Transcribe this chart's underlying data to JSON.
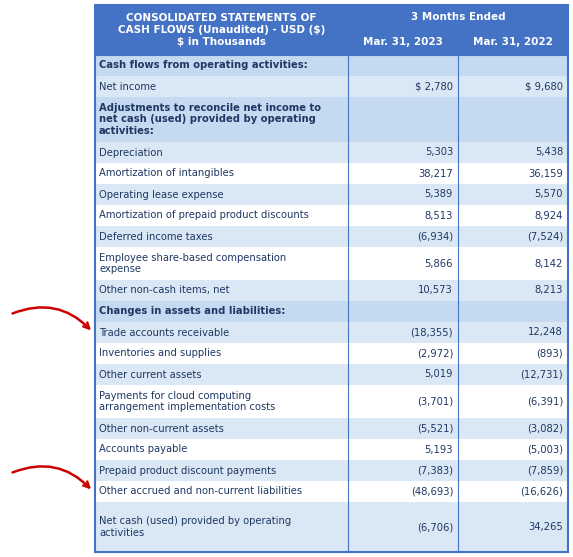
{
  "title_line1": "CONSOLIDATED STATEMENTS OF",
  "title_line2": "CASH FLOWS (Unaudited) - USD ($)",
  "title_line3": "$ in Thousands",
  "col1_header": "3 Months Ended",
  "col1_sub1": "Mar. 31, 2023",
  "col1_sub2": "Mar. 31, 2022",
  "rows": [
    {
      "label": "Cash flows from operating activities:",
      "val1": "",
      "val2": "",
      "bold": true,
      "header_row": true,
      "arrow": false,
      "multiline": false
    },
    {
      "label": "Net income",
      "val1": "$ 2,780",
      "val2": "$ 9,680",
      "bold": false,
      "header_row": false,
      "arrow": false,
      "multiline": false
    },
    {
      "label": "Adjustments to reconcile net income to\nnet cash (used) provided by operating\nactivities:",
      "val1": "",
      "val2": "",
      "bold": true,
      "header_row": true,
      "arrow": false,
      "multiline": true
    },
    {
      "label": "Depreciation",
      "val1": "5,303",
      "val2": "5,438",
      "bold": false,
      "header_row": false,
      "arrow": false,
      "multiline": false
    },
    {
      "label": "Amortization of intangibles",
      "val1": "38,217",
      "val2": "36,159",
      "bold": false,
      "header_row": false,
      "arrow": false,
      "multiline": false
    },
    {
      "label": "Operating lease expense",
      "val1": "5,389",
      "val2": "5,570",
      "bold": false,
      "header_row": false,
      "arrow": false,
      "multiline": false
    },
    {
      "label": "Amortization of prepaid product discounts",
      "val1": "8,513",
      "val2": "8,924",
      "bold": false,
      "header_row": false,
      "arrow": false,
      "multiline": false
    },
    {
      "label": "Deferred income taxes",
      "val1": "(6,934)",
      "val2": "(7,524)",
      "bold": false,
      "header_row": false,
      "arrow": false,
      "multiline": false
    },
    {
      "label": "Employee share-based compensation\nexpense",
      "val1": "5,866",
      "val2": "8,142",
      "bold": false,
      "header_row": false,
      "arrow": false,
      "multiline": true
    },
    {
      "label": "Other non-cash items, net",
      "val1": "10,573",
      "val2": "8,213",
      "bold": false,
      "header_row": false,
      "arrow": false,
      "multiline": false
    },
    {
      "label": "Changes in assets and liabilities:",
      "val1": "",
      "val2": "",
      "bold": true,
      "header_row": true,
      "arrow": false,
      "multiline": false
    },
    {
      "label": "Trade accounts receivable",
      "val1": "(18,355)",
      "val2": "12,248",
      "bold": false,
      "header_row": false,
      "arrow": true,
      "multiline": false
    },
    {
      "label": "Inventories and supplies",
      "val1": "(2,972)",
      "val2": "(893)",
      "bold": false,
      "header_row": false,
      "arrow": false,
      "multiline": false
    },
    {
      "label": "Other current assets",
      "val1": "5,019",
      "val2": "(12,731)",
      "bold": false,
      "header_row": false,
      "arrow": false,
      "multiline": false
    },
    {
      "label": "Payments for cloud computing\narrangement implementation costs",
      "val1": "(3,701)",
      "val2": "(6,391)",
      "bold": false,
      "header_row": false,
      "arrow": false,
      "multiline": true
    },
    {
      "label": "Other non-current assets",
      "val1": "(5,521)",
      "val2": "(3,082)",
      "bold": false,
      "header_row": false,
      "arrow": false,
      "multiline": false
    },
    {
      "label": "Accounts payable",
      "val1": "5,193",
      "val2": "(5,003)",
      "bold": false,
      "header_row": false,
      "arrow": false,
      "multiline": false
    },
    {
      "label": "Prepaid product discount payments",
      "val1": "(7,383)",
      "val2": "(7,859)",
      "bold": false,
      "header_row": false,
      "arrow": false,
      "multiline": false
    },
    {
      "label": "Other accrued and non-current liabilities",
      "val1": "(48,693)",
      "val2": "(16,626)",
      "bold": false,
      "header_row": false,
      "arrow": true,
      "multiline": false
    },
    {
      "label": "Net cash (used) provided by operating\nactivities",
      "val1": "(6,706)",
      "val2": "34,265",
      "bold": false,
      "header_row": false,
      "arrow": false,
      "multiline": true
    }
  ],
  "header_bg": "#4472C4",
  "header_text_color": "#FFFFFF",
  "section_bg": "#C5D9F1",
  "row_bg_alt": "#DAE8F5",
  "row_bg_white": "#FFFFFF",
  "border_color": "#4472C4",
  "arrow_color": "#CC0000",
  "text_color": "#1F3864",
  "figsize": [
    5.73,
    5.57
  ],
  "dpi": 100
}
